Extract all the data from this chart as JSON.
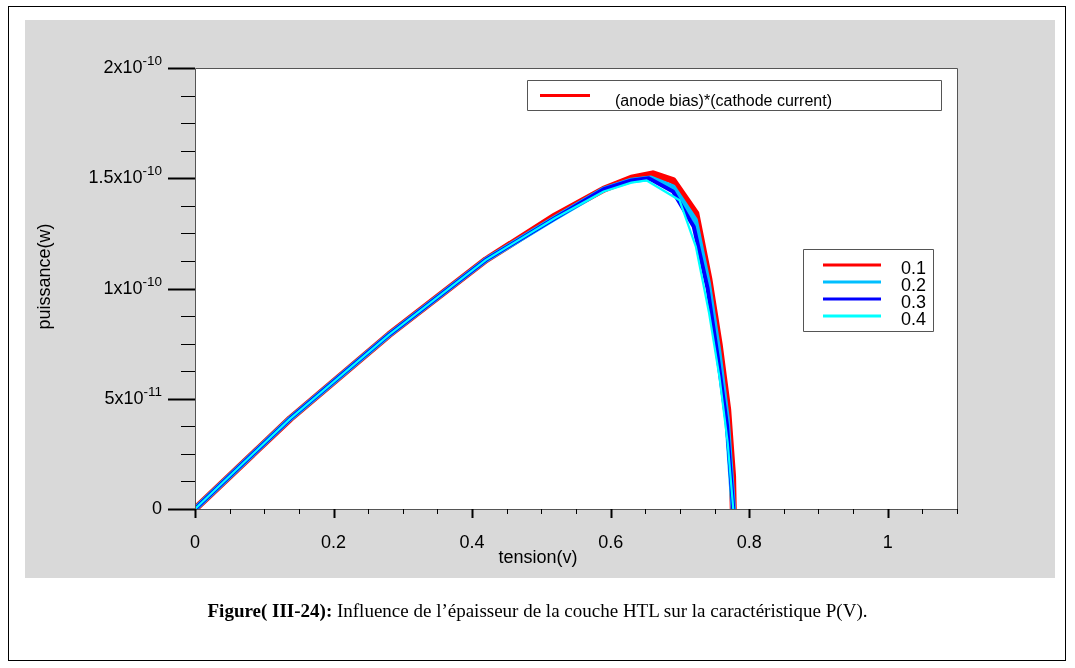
{
  "chart_data": {
    "type": "line",
    "xlabel": "tension(v)",
    "ylabel": "puissance(w)",
    "legend_title": "(anode bias)*(cathode current)",
    "annotations": [
      "Figure( III-24): Influence de l’épaisseur de la couche HTL sur la caractéristique P(V)."
    ],
    "xlim": [
      0,
      1.1
    ],
    "xticks": [
      0,
      0.2,
      0.4,
      0.6,
      0.8,
      1
    ],
    "ylim": [
      0,
      2e-10
    ],
    "yticks": [
      {
        "value": 0,
        "label": "0"
      },
      {
        "value": 5e-11,
        "label": "5x10$^{-11}$"
      },
      {
        "value": 1e-10,
        "label": "1x10$^{-10}$"
      },
      {
        "value": 1.5e-10,
        "label": "1.5x10$^{-10}$"
      },
      {
        "value": 2e-10,
        "label": "2x10$^{-10}$"
      }
    ],
    "grid": false,
    "legend": "right",
    "line_style": "solid",
    "series": [
      {
        "name": "0.1",
        "color": "#ff0000",
        "x": [
          0,
          0.1375,
          0.28,
          0.42,
          0.52,
          0.59,
          0.63,
          0.661,
          0.69,
          0.723,
          0.742,
          0.757,
          0.769,
          0.776,
          0.777
        ],
        "values": [
          0,
          4.1e-11,
          7.9e-11,
          1.13e-10,
          1.33e-10,
          1.45e-10,
          1.5e-10,
          1.52e-10,
          1.49e-10,
          1.34e-10,
          1.04e-10,
          7.4e-11,
          4.5e-11,
          1.5e-11,
          0
        ]
      },
      {
        "name": "0.2",
        "color": "#00bfff",
        "x": [
          0,
          0.1375,
          0.28,
          0.42,
          0.52,
          0.59,
          0.63,
          0.658,
          0.69,
          0.722,
          0.741,
          0.756,
          0.768,
          0.777
        ],
        "values": [
          0,
          4.1e-11,
          7.9e-11,
          1.13e-10,
          1.32e-10,
          1.45e-10,
          1.49e-10,
          1.5e-10,
          1.46e-10,
          1.31e-10,
          1.02e-10,
          7.1e-11,
          4.1e-11,
          0
        ]
      },
      {
        "name": "0.3",
        "color": "#0000ff",
        "x": [
          0,
          0.1375,
          0.28,
          0.42,
          0.52,
          0.59,
          0.63,
          0.655,
          0.69,
          0.72,
          0.74,
          0.755,
          0.768,
          0.777
        ],
        "values": [
          0,
          4.1e-11,
          7.9e-11,
          1.13e-10,
          1.32e-10,
          1.45e-10,
          1.49e-10,
          1.5e-10,
          1.44e-10,
          1.28e-10,
          1e-10,
          6.8e-11,
          3.8e-11,
          0
        ]
      },
      {
        "name": "0.4",
        "color": "#00ffff",
        "x": [
          0,
          0.1375,
          0.28,
          0.42,
          0.52,
          0.59,
          0.63,
          0.652,
          0.6995,
          0.723,
          0.742,
          0.757,
          0.769,
          0.777
        ],
        "values": [
          0,
          4.1e-11,
          7.9e-11,
          1.13e-10,
          1.32e-10,
          1.44e-10,
          1.48e-10,
          1.49e-10,
          1.4e-10,
          1.19e-10,
          8.9e-11,
          6e-11,
          3e-11,
          0
        ]
      }
    ]
  }
}
